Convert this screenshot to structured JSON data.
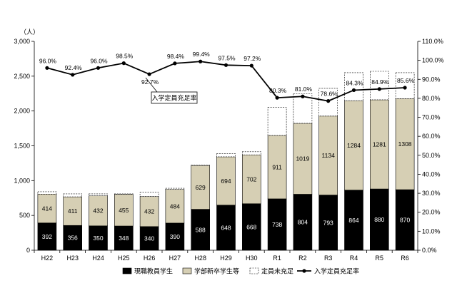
{
  "chart_data": {
    "type": "bar",
    "left_axis_unit": "（人）",
    "categories": [
      "H22",
      "H23",
      "H24",
      "H25",
      "H26",
      "H27",
      "H28",
      "H29",
      "H30",
      "R1",
      "R2",
      "R3",
      "R4",
      "R5",
      "R6"
    ],
    "series": [
      {
        "name": "現職教員学生",
        "kind": "bar-stack",
        "color": "#000000",
        "values": [
          392,
          356,
          350,
          348,
          340,
          390,
          588,
          648,
          668,
          738,
          804,
          793,
          864,
          880,
          870
        ]
      },
      {
        "name": "学部新卒学生等",
        "kind": "bar-stack",
        "color": "#d6cfb4",
        "values": [
          414,
          411,
          432,
          455,
          432,
          484,
          629,
          694,
          702,
          911,
          1019,
          1134,
          1284,
          1281,
          1308
        ]
      },
      {
        "name": "定員未充足",
        "kind": "bar-stack-dashed",
        "color": "#ffffff",
        "values": [
          34,
          43,
          28,
          7,
          61,
          16,
          5,
          45,
          45,
          402,
          427,
          398,
          402,
          409,
          372
        ]
      },
      {
        "name": "入学定員充足率",
        "kind": "line",
        "axis": "right",
        "color": "#000000",
        "values": [
          96.0,
          92.4,
          96.0,
          98.5,
          92.7,
          98.4,
          99.4,
          97.5,
          97.2,
          80.3,
          81.0,
          78.6,
          84.3,
          84.9,
          85.6
        ],
        "labels": [
          "96.0%",
          "92.4%",
          "96.0%",
          "98.5%",
          "92.7%",
          "98.4%",
          "99.4%",
          "97.5%",
          "97.2%",
          "80.3%",
          "81.0%",
          "78.6%",
          "84.3%",
          "84.9%",
          "85.6%"
        ]
      }
    ],
    "left_ticks": [
      "0",
      "500",
      "1,000",
      "1,500",
      "2,000",
      "2,500",
      "3,000"
    ],
    "right_ticks": [
      "0.0%",
      "10.0%",
      "20.0%",
      "30.0%",
      "40.0%",
      "50.0%",
      "60.0%",
      "70.0%",
      "80.0%",
      "90.0%",
      "100.0%",
      "110.0%"
    ],
    "ylim_left": [
      0,
      3000
    ],
    "ylim_right": [
      0,
      110
    ],
    "callout": "入学定員充足率",
    "legend_position": "bottom"
  }
}
